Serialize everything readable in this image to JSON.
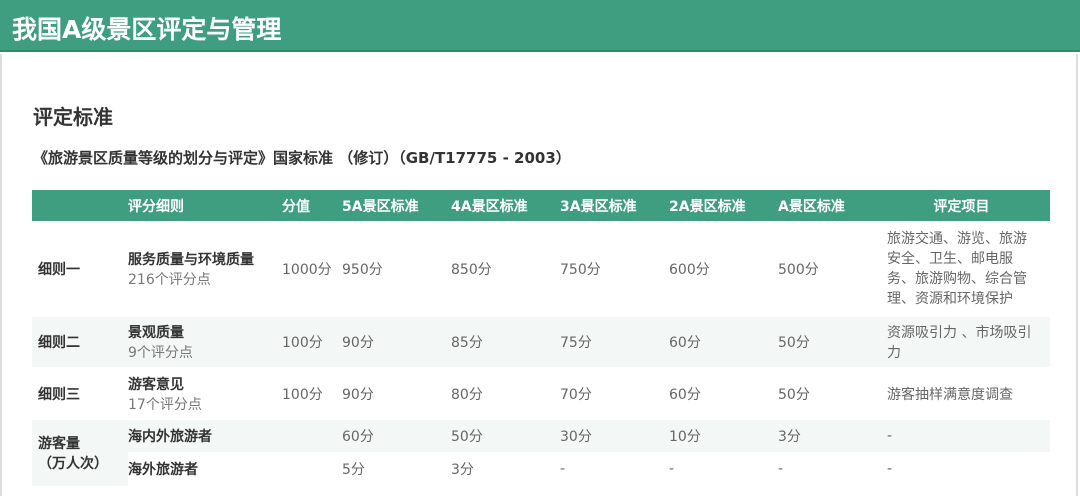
{
  "header": {
    "title": "我国A级景区评定与管理"
  },
  "section_title": "评定标准",
  "subtitle": "《旅游景区质量等级的划分与评定》国家标准 （修订）（GB/T17775 - 2003）",
  "table": {
    "headers": [
      "",
      "评分细则",
      "分值",
      "5A景区标准",
      "4A景区标准",
      "3A景区标准",
      "2A景区标准",
      "A景区标准",
      "评定项目"
    ],
    "rows": [
      {
        "label": "细则一",
        "item": "服务质量与环境质量",
        "points": "216个评分点",
        "score": "1000分",
        "values": [
          "950分",
          "850分",
          "750分",
          "600分",
          "500分"
        ],
        "scope": "旅游交通、游览、旅游安全、卫生、邮电服务、旅游购物、综合管理、资源和环境保护"
      },
      {
        "label": "细则二",
        "item": "景观质量",
        "points": "9个评分点",
        "score": "100分",
        "values": [
          "90分",
          "85分",
          "75分",
          "60分",
          "50分"
        ],
        "scope": "资源吸引力 、市场吸引力"
      },
      {
        "label": "细则三",
        "item": "游客意见",
        "points": "17个评分点",
        "score": "100分",
        "values": [
          "90分",
          "80分",
          "70分",
          "60分",
          "50分"
        ],
        "scope": "游客抽样满意度调查"
      }
    ],
    "visitors": {
      "label_line1": "游客量",
      "label_line2": "（万人次）",
      "rows": [
        {
          "item": "海内外旅游者",
          "values": [
            "60分",
            "50分",
            "30分",
            "10分",
            "3分"
          ],
          "scope": "-"
        },
        {
          "item": "海外旅游者",
          "values": [
            "5分",
            "3分",
            "-",
            "-",
            "-"
          ],
          "scope": "-"
        }
      ]
    }
  }
}
